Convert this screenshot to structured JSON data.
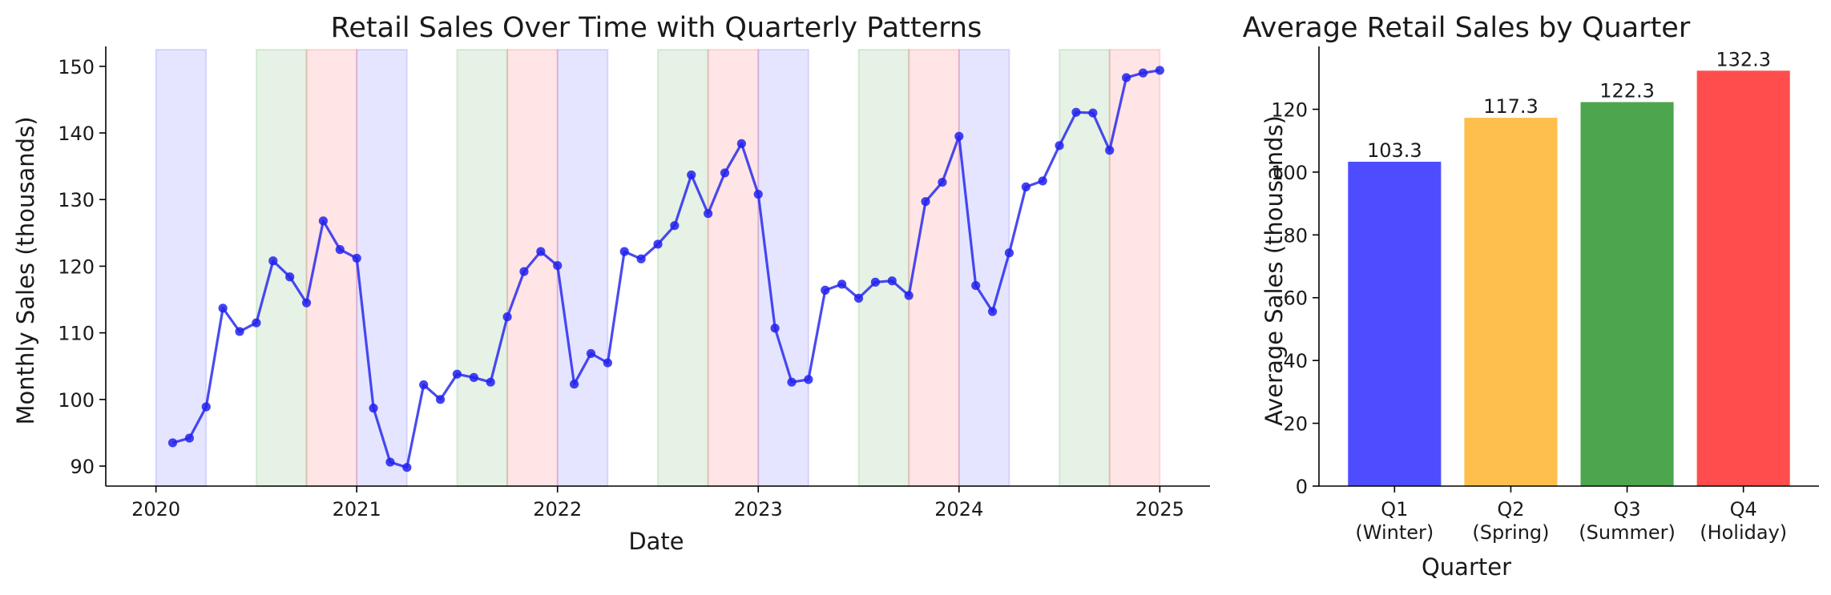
{
  "chart_data": [
    {
      "type": "line",
      "title": "Retail Sales Over Time with Quarterly Patterns",
      "xlabel": "Date",
      "ylabel": "Monthly Sales (thousands)",
      "xticks": [
        "2020",
        "2021",
        "2022",
        "2023",
        "2024",
        "2025"
      ],
      "yticks": [
        90,
        100,
        110,
        120,
        130,
        140,
        150
      ],
      "xlim": [
        2019.75,
        2025.25
      ],
      "ylim": [
        87,
        152.5
      ],
      "series": [
        {
          "name": "Monthly Sales",
          "color": "#2222ee",
          "values": [
            93.5,
            94.2,
            98.9,
            113.7,
            110.2,
            111.5,
            120.8,
            118.4,
            114.5,
            126.8,
            122.5,
            121.2,
            98.7,
            90.6,
            89.8,
            102.2,
            100.0,
            103.8,
            103.3,
            102.6,
            112.4,
            119.2,
            122.2,
            120.1,
            102.3,
            106.9,
            105.5,
            122.2,
            121.1,
            123.3,
            126.1,
            133.7,
            127.9,
            134.0,
            138.4,
            130.8,
            110.7,
            102.6,
            103.0,
            116.4,
            117.3,
            115.2,
            117.6,
            117.8,
            115.6,
            129.7,
            132.6,
            139.5,
            117.1,
            113.2,
            122.0,
            131.9,
            132.8,
            138.1,
            143.1,
            143.0,
            137.4,
            148.3,
            149.0,
            149.4
          ]
        }
      ],
      "shaded_regions": [
        {
          "label": "Q1",
          "color": "#0000ff",
          "starts": [
            2020,
            2021,
            2022,
            2023,
            2024
          ]
        },
        {
          "label": "Q3",
          "color": "#008000",
          "starts": [
            2020.5,
            2021.5,
            2022.5,
            2023.5,
            2024.5
          ]
        },
        {
          "label": "Q4",
          "color": "#ff0000",
          "starts": [
            2020.75,
            2021.75,
            2022.75,
            2023.75,
            2024.75
          ]
        }
      ]
    },
    {
      "type": "bar",
      "title": "Average Retail Sales by Quarter",
      "xlabel": "Quarter",
      "ylabel": "Average Sales (thousands)",
      "categories": [
        {
          "line1": "Q1",
          "line2": "(Winter)"
        },
        {
          "line1": "Q2",
          "line2": "(Spring)"
        },
        {
          "line1": "Q3",
          "line2": "(Summer)"
        },
        {
          "line1": "Q4",
          "line2": "(Holiday)"
        }
      ],
      "values": [
        103.3,
        117.3,
        122.3,
        132.3
      ],
      "value_labels": [
        "103.3",
        "117.3",
        "122.3",
        "132.3"
      ],
      "colors": [
        "#4d4dff",
        "#ffbf4d",
        "#4da64d",
        "#ff4d4d"
      ],
      "yticks": [
        0,
        20,
        40,
        60,
        80,
        100,
        120
      ],
      "ylim": [
        0,
        139
      ]
    }
  ]
}
